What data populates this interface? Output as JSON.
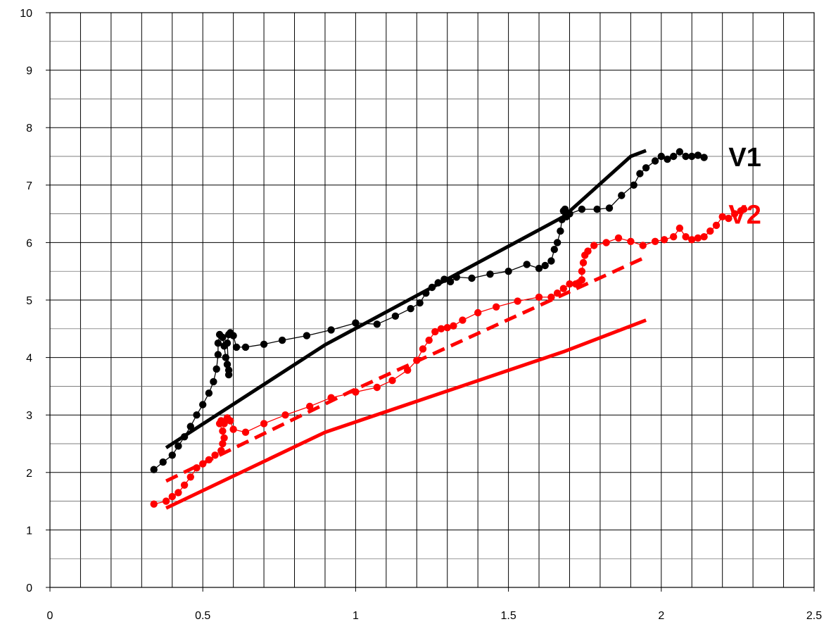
{
  "chart_data": {
    "type": "line",
    "title": "",
    "xlabel": "",
    "ylabel": "",
    "xlim": [
      0,
      2.5
    ],
    "ylim": [
      0,
      10
    ],
    "x_ticks": [
      "0",
      "0.5",
      "1",
      "1.5",
      "2",
      "2.5"
    ],
    "y_ticks": [
      "0",
      "1",
      "2",
      "3",
      "4",
      "5",
      "6",
      "7",
      "8",
      "9",
      "10"
    ],
    "grid": true,
    "x_minor_step": 0.1,
    "y_minor_step": 0.5,
    "annotations": [
      {
        "text": "V1",
        "color": "#000000",
        "x": 2.22,
        "y": 7.5
      },
      {
        "text": "V2",
        "color": "#ff0000",
        "x": 2.22,
        "y": 6.5
      }
    ],
    "series": [
      {
        "color": "#000000",
        "style": "solid-thin",
        "marker": "circle",
        "points": [
          [
            0.34,
            2.05
          ],
          [
            0.37,
            2.18
          ],
          [
            0.4,
            2.3
          ],
          [
            0.42,
            2.46
          ],
          [
            0.44,
            2.62
          ],
          [
            0.46,
            2.8
          ],
          [
            0.48,
            3.0
          ],
          [
            0.5,
            3.18
          ],
          [
            0.52,
            3.38
          ],
          [
            0.535,
            3.58
          ],
          [
            0.545,
            3.8
          ],
          [
            0.55,
            4.05
          ],
          [
            0.55,
            4.25
          ],
          [
            0.555,
            4.4
          ],
          [
            0.565,
            4.35
          ],
          [
            0.57,
            4.2
          ],
          [
            0.575,
            4.0
          ],
          [
            0.58,
            3.88
          ],
          [
            0.585,
            3.78
          ],
          [
            0.585,
            3.7
          ],
          [
            0.58,
            4.25
          ],
          [
            0.585,
            4.4
          ],
          [
            0.59,
            4.43
          ],
          [
            0.6,
            4.38
          ],
          [
            0.61,
            4.18
          ],
          [
            0.64,
            4.18
          ],
          [
            0.7,
            4.23
          ],
          [
            0.76,
            4.3
          ],
          [
            0.84,
            4.38
          ],
          [
            0.92,
            4.48
          ],
          [
            1.0,
            4.6
          ],
          [
            1.07,
            4.58
          ],
          [
            1.13,
            4.72
          ],
          [
            1.18,
            4.85
          ],
          [
            1.21,
            4.95
          ],
          [
            1.23,
            5.12
          ],
          [
            1.25,
            5.22
          ],
          [
            1.27,
            5.3
          ],
          [
            1.29,
            5.36
          ],
          [
            1.31,
            5.32
          ],
          [
            1.33,
            5.4
          ],
          [
            1.38,
            5.38
          ],
          [
            1.44,
            5.45
          ],
          [
            1.5,
            5.5
          ],
          [
            1.56,
            5.62
          ],
          [
            1.6,
            5.55
          ],
          [
            1.62,
            5.6
          ],
          [
            1.64,
            5.68
          ],
          [
            1.65,
            5.88
          ],
          [
            1.66,
            6.0
          ],
          [
            1.67,
            6.2
          ],
          [
            1.675,
            6.4
          ],
          [
            1.68,
            6.55
          ],
          [
            1.685,
            6.58
          ],
          [
            1.69,
            6.45
          ],
          [
            1.7,
            6.5
          ],
          [
            1.74,
            6.58
          ],
          [
            1.79,
            6.58
          ],
          [
            1.83,
            6.6
          ],
          [
            1.87,
            6.82
          ],
          [
            1.91,
            7.0
          ],
          [
            1.93,
            7.2
          ],
          [
            1.95,
            7.3
          ],
          [
            1.98,
            7.42
          ],
          [
            2.0,
            7.5
          ],
          [
            2.02,
            7.45
          ],
          [
            2.04,
            7.5
          ],
          [
            2.06,
            7.58
          ],
          [
            2.08,
            7.5
          ],
          [
            2.1,
            7.5
          ],
          [
            2.12,
            7.52
          ],
          [
            2.14,
            7.48
          ]
        ]
      },
      {
        "color": "#000000",
        "style": "solid-thick",
        "marker": "none",
        "points": [
          [
            0.38,
            2.43
          ],
          [
            0.9,
            4.22
          ],
          [
            1.68,
            6.45
          ],
          [
            1.9,
            7.5
          ],
          [
            1.95,
            7.6
          ]
        ]
      },
      {
        "color": "#ff0000",
        "style": "solid-thin",
        "marker": "circle",
        "points": [
          [
            0.34,
            1.45
          ],
          [
            0.38,
            1.5
          ],
          [
            0.4,
            1.58
          ],
          [
            0.42,
            1.65
          ],
          [
            0.44,
            1.78
          ],
          [
            0.46,
            1.92
          ],
          [
            0.48,
            2.08
          ],
          [
            0.5,
            2.15
          ],
          [
            0.52,
            2.22
          ],
          [
            0.54,
            2.3
          ],
          [
            0.56,
            2.38
          ],
          [
            0.565,
            2.5
          ],
          [
            0.57,
            2.6
          ],
          [
            0.565,
            2.72
          ],
          [
            0.555,
            2.85
          ],
          [
            0.56,
            2.9
          ],
          [
            0.57,
            2.85
          ],
          [
            0.58,
            2.95
          ],
          [
            0.59,
            2.9
          ],
          [
            0.6,
            2.75
          ],
          [
            0.64,
            2.7
          ],
          [
            0.7,
            2.85
          ],
          [
            0.77,
            3.0
          ],
          [
            0.85,
            3.15
          ],
          [
            0.92,
            3.3
          ],
          [
            1.0,
            3.4
          ],
          [
            1.07,
            3.48
          ],
          [
            1.12,
            3.6
          ],
          [
            1.17,
            3.78
          ],
          [
            1.2,
            3.95
          ],
          [
            1.22,
            4.15
          ],
          [
            1.24,
            4.3
          ],
          [
            1.26,
            4.45
          ],
          [
            1.28,
            4.5
          ],
          [
            1.3,
            4.52
          ],
          [
            1.32,
            4.55
          ],
          [
            1.35,
            4.65
          ],
          [
            1.4,
            4.78
          ],
          [
            1.46,
            4.88
          ],
          [
            1.53,
            4.98
          ],
          [
            1.6,
            5.05
          ],
          [
            1.64,
            5.05
          ],
          [
            1.66,
            5.12
          ],
          [
            1.68,
            5.2
          ],
          [
            1.7,
            5.28
          ],
          [
            1.72,
            5.28
          ],
          [
            1.73,
            5.3
          ],
          [
            1.74,
            5.35
          ],
          [
            1.74,
            5.5
          ],
          [
            1.745,
            5.65
          ],
          [
            1.75,
            5.78
          ],
          [
            1.76,
            5.85
          ],
          [
            1.78,
            5.95
          ],
          [
            1.82,
            6.0
          ],
          [
            1.86,
            6.08
          ],
          [
            1.9,
            6.02
          ],
          [
            1.94,
            5.95
          ],
          [
            1.98,
            6.02
          ],
          [
            2.01,
            6.05
          ],
          [
            2.04,
            6.1
          ],
          [
            2.06,
            6.25
          ],
          [
            2.08,
            6.1
          ],
          [
            2.1,
            6.05
          ],
          [
            2.12,
            6.08
          ],
          [
            2.14,
            6.1
          ],
          [
            2.16,
            6.2
          ],
          [
            2.18,
            6.3
          ],
          [
            2.2,
            6.45
          ],
          [
            2.22,
            6.42
          ],
          [
            2.24,
            6.5
          ],
          [
            2.26,
            6.55
          ],
          [
            2.27,
            6.58
          ]
        ]
      },
      {
        "color": "#ff0000",
        "style": "dashed-thick",
        "marker": "none",
        "points": [
          [
            0.38,
            1.85
          ],
          [
            1.0,
            3.45
          ],
          [
            1.95,
            5.75
          ]
        ]
      },
      {
        "color": "#ff0000",
        "style": "solid-thick",
        "marker": "none",
        "points": [
          [
            0.38,
            1.38
          ],
          [
            0.9,
            2.7
          ],
          [
            1.68,
            4.1
          ],
          [
            1.95,
            4.65
          ]
        ]
      }
    ]
  }
}
